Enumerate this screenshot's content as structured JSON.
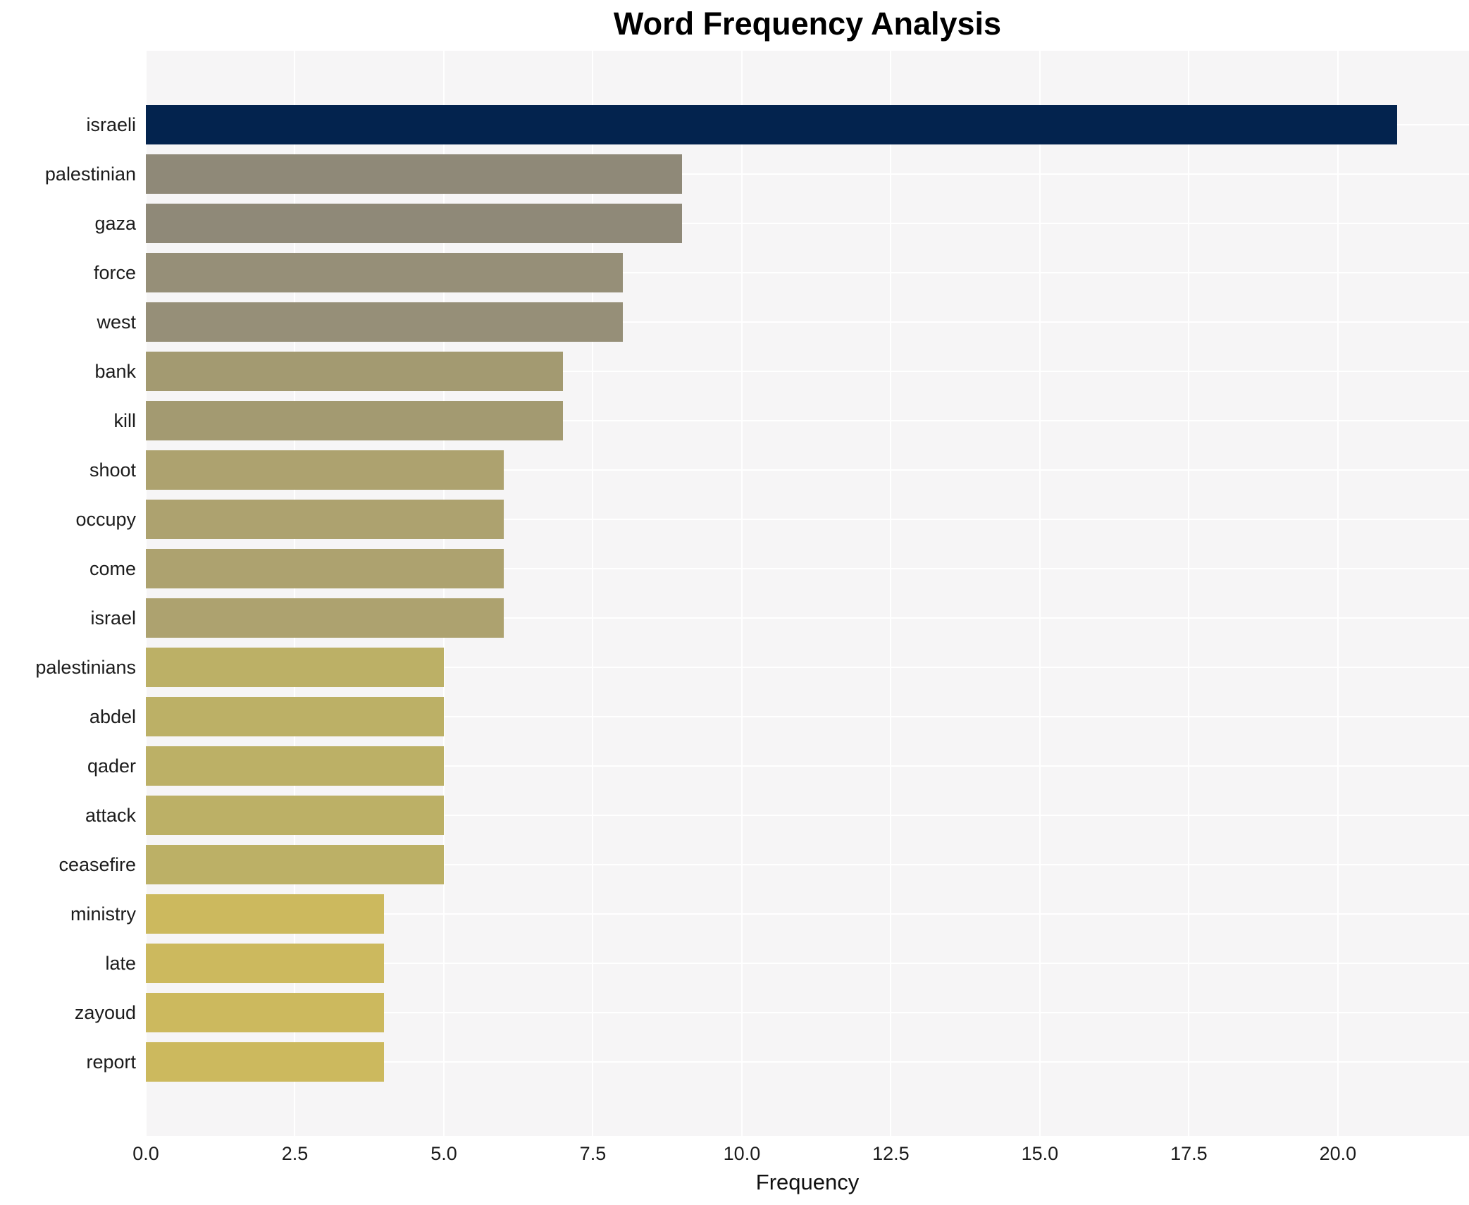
{
  "chart_data": {
    "type": "bar",
    "orientation": "horizontal",
    "title": "Word Frequency Analysis",
    "xlabel": "Frequency",
    "ylabel": "",
    "categories": [
      "israeli",
      "palestinian",
      "gaza",
      "force",
      "west",
      "bank",
      "kill",
      "shoot",
      "occupy",
      "come",
      "israel",
      "palestinians",
      "abdel",
      "qader",
      "attack",
      "ceasefire",
      "ministry",
      "late",
      "zayoud",
      "report"
    ],
    "values": [
      21,
      9,
      9,
      8,
      8,
      7,
      7,
      6,
      6,
      6,
      6,
      5,
      5,
      5,
      5,
      5,
      4,
      4,
      4,
      4
    ],
    "bar_colors": [
      "#03234e",
      "#8f8978",
      "#8f8978",
      "#968f78",
      "#968f78",
      "#a39a71",
      "#a39a71",
      "#ada26f",
      "#ada26f",
      "#ada26f",
      "#ada26f",
      "#bcb066",
      "#bcb066",
      "#bcb066",
      "#bcb066",
      "#bcb066",
      "#ccb95e",
      "#ccb95e",
      "#ccb95e",
      "#ccb95e"
    ],
    "xticks": [
      0.0,
      2.5,
      5.0,
      7.5,
      10.0,
      12.5,
      15.0,
      17.5,
      20.0
    ],
    "xtick_labels": [
      "0.0",
      "2.5",
      "5.0",
      "7.5",
      "10.0",
      "12.5",
      "15.0",
      "17.5",
      "20.0"
    ],
    "xlim": [
      0,
      22.2
    ],
    "grid": true,
    "legend": null,
    "colors": {
      "plot_background": "#f6f5f6",
      "figure_background": "#ffffff",
      "gridline": "#ffffff",
      "title_text": "#000000",
      "tick_text": "#1c1c1c"
    }
  }
}
